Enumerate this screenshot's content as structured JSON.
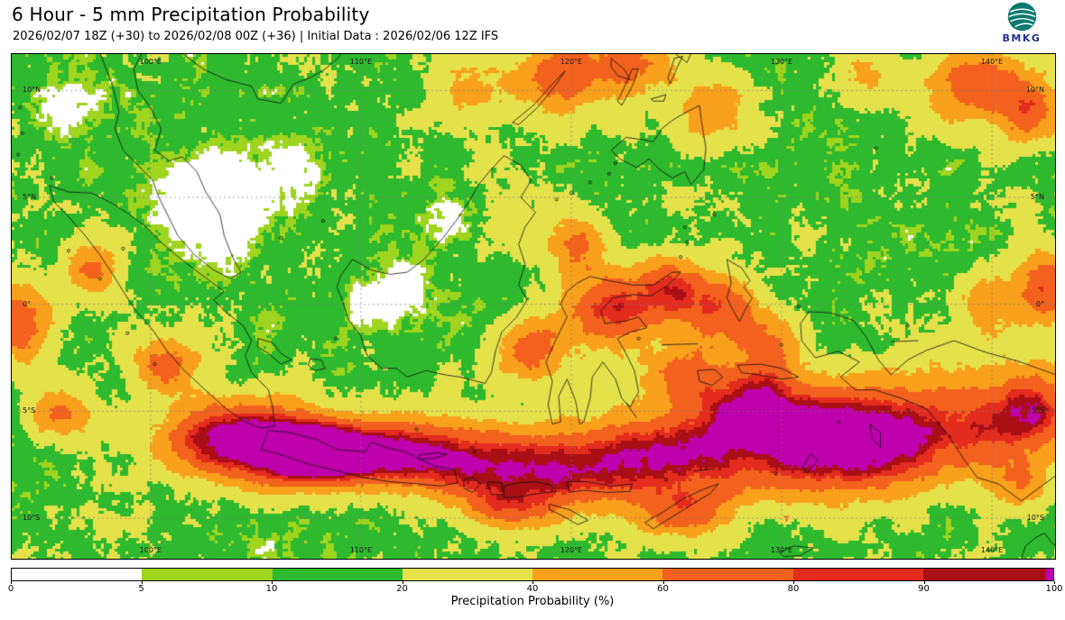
{
  "header": {
    "title": "6 Hour - 5 mm Precipitation Probability",
    "subtitle": "2026/02/07 18Z (+30) to 2026/02/08 00Z (+36) | Initial Data : 2026/02/06 12Z IFS",
    "logo_text": "BMKG"
  },
  "map": {
    "bounds": {
      "lon_min": 93.4,
      "lon_max": 143.0,
      "lat_min": -11.9,
      "lat_max": 11.7
    },
    "grid": {
      "lons": [
        100,
        110,
        120,
        130,
        140
      ],
      "lon_labels": [
        "100°E",
        "110°E",
        "120°E",
        "130°E",
        "140°E"
      ],
      "lats": [
        10,
        5,
        0,
        -5,
        -10
      ],
      "lat_labels": [
        "10°N",
        "5°N",
        "0°",
        "5°S",
        "10°S"
      ]
    },
    "marker_text": "T"
  },
  "colorbar": {
    "label": "Precipitation Probability (%)",
    "tick_labels": [
      "0",
      "5",
      "10",
      "20",
      "40",
      "60",
      "80",
      "90",
      "100"
    ],
    "thresholds": [
      5,
      10,
      20,
      40,
      60,
      80,
      90,
      100
    ],
    "band_colors": [
      "#ffffff",
      "#9fd41f",
      "#2eb92e",
      "#e5e14b",
      "#f9a01d",
      "#f2611d",
      "#e32b1e",
      "#a90f15"
    ],
    "overflow_color": "#bf00ad"
  }
}
